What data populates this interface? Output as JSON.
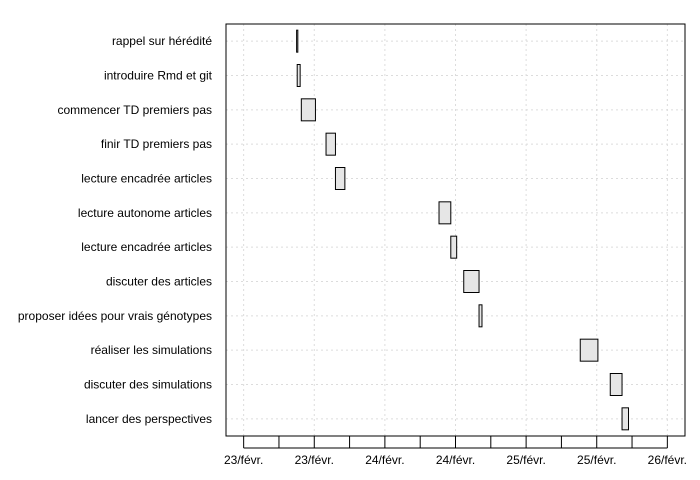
{
  "chart_data": {
    "type": "gantt",
    "title": "",
    "xlabel": "",
    "ylabel": "",
    "grid": true,
    "legend": "none",
    "bar_fill": "#e6e6e6",
    "bar_stroke": "#000000",
    "grid_color": "#dcdcdc",
    "x_unit": "hours since 23/févr. 00:00",
    "xlim": [
      -3,
      75
    ],
    "x_ticks": [
      0,
      12,
      24,
      36,
      48,
      60,
      72
    ],
    "x_tick_labels": [
      "23/févr.",
      "23/févr.",
      "24/févr.",
      "24/févr.",
      "25/févr.",
      "25/févr.",
      "26/févr."
    ],
    "tasks": [
      {
        "name": "rappel sur hérédité",
        "start": 9.0,
        "end": 9.1
      },
      {
        "name": "introduire Rmd et git",
        "start": 9.1,
        "end": 9.6
      },
      {
        "name": "commencer TD premiers pas",
        "start": 9.8,
        "end": 12.2
      },
      {
        "name": "finir TD premiers pas",
        "start": 14.0,
        "end": 15.6
      },
      {
        "name": "lecture encadrée articles",
        "start": 15.6,
        "end": 17.2
      },
      {
        "name": "lecture autonome articles",
        "start": 33.2,
        "end": 35.2
      },
      {
        "name": "lecture encadrée articles",
        "start": 35.2,
        "end": 36.2
      },
      {
        "name": "discuter des articles",
        "start": 37.4,
        "end": 40.0
      },
      {
        "name": "proposer idées pour vrais génotypes",
        "start": 40.0,
        "end": 40.5
      },
      {
        "name": "réaliser les simulations",
        "start": 57.2,
        "end": 60.2
      },
      {
        "name": "discuter des simulations",
        "start": 62.3,
        "end": 64.3
      },
      {
        "name": "lancer des perspectives",
        "start": 64.3,
        "end": 65.4
      }
    ]
  }
}
